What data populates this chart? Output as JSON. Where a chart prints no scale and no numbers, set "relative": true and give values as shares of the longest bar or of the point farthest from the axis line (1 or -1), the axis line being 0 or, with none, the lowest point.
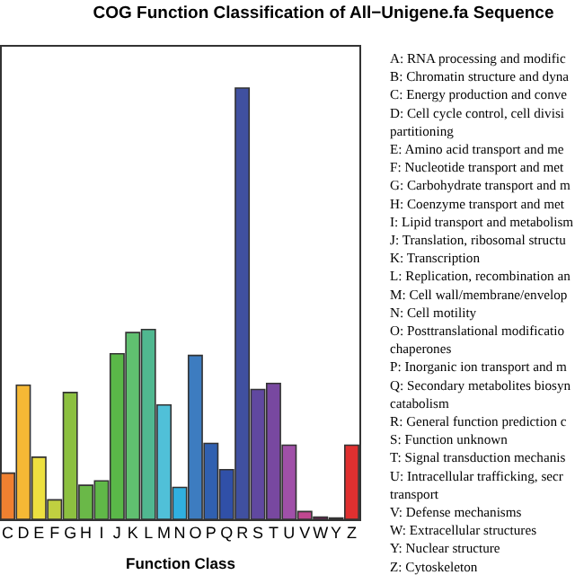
{
  "chart_data": {
    "type": "bar",
    "title": "COG Function Classification of All−Unigene.fa Sequence",
    "xlabel": "Function Class",
    "relative": true,
    "categories": [
      "C",
      "D",
      "E",
      "F",
      "G",
      "H",
      "I",
      "J",
      "K",
      "L",
      "M",
      "N",
      "O",
      "P",
      "Q",
      "R",
      "S",
      "T",
      "U",
      "V",
      "W",
      "Y",
      "Z"
    ],
    "values": [
      0.107,
      0.311,
      0.144,
      0.045,
      0.294,
      0.079,
      0.089,
      0.384,
      0.433,
      0.44,
      0.265,
      0.074,
      0.38,
      0.176,
      0.115,
      1,
      0.301,
      0.315,
      0.172,
      0.018,
      0.005,
      0.003,
      0.172
    ],
    "colors": [
      "#f08030",
      "#f5b835",
      "#ede040",
      "#c0d040",
      "#8cc040",
      "#6ab848",
      "#60b848",
      "#5ab848",
      "#60c070",
      "#50b890",
      "#50c0d8",
      "#30b0e0",
      "#3d7cc0",
      "#3060b0",
      "#3050a8",
      "#4050a0",
      "#6048a0",
      "#7848a0",
      "#a050a8",
      "#c04890",
      "#802060",
      "#600020",
      "#e03030"
    ],
    "grid": false,
    "annotations": [
      "A: RNA processing and modific",
      "B: Chromatin structure and dyna",
      "C: Energy production and conve",
      "D: Cell cycle control, cell divisi",
      "partitioning",
      "E: Amino acid transport and me",
      "F: Nucleotide transport and met",
      "G: Carbohydrate transport and m",
      "H: Coenzyme transport and met",
      "I: Lipid transport and metabolism",
      "J: Translation, ribosomal structu",
      "K: Transcription",
      "L: Replication, recombination an",
      "M: Cell wall/membrane/envelop",
      "N: Cell motility",
      "O: Posttranslational modificatio",
      "chaperones",
      "P: Inorganic ion transport and m",
      "Q: Secondary metabolites biosyn",
      "catabolism",
      "R: General function prediction c",
      "S: Function unknown",
      "T: Signal transduction mechanis",
      "U: Intracellular trafficking, secr",
      "transport",
      "V: Defense mechanisms",
      "W: Extracellular structures",
      "Y: Nuclear structure",
      "Z: Cytoskeleton"
    ]
  }
}
